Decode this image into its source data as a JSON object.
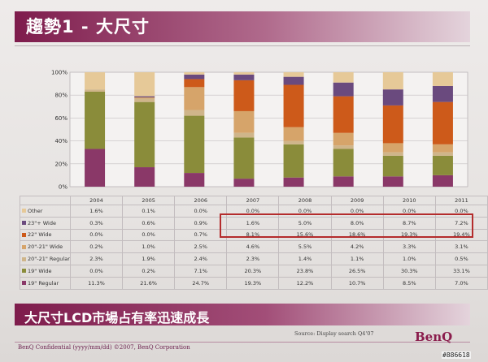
{
  "slide": {
    "title": "趨勢1 - 大尺寸",
    "banner": "大尺寸LCD市場占有率迅速成長",
    "source": "Source: Display search Q4'07",
    "confidential": "BenQ Confidential (yyyy/mm/dd) ©2007, BenQ Corporation",
    "logo": "BenQ",
    "watermark": "#886618"
  },
  "colors": {
    "Other": "#e6c998",
    "23\"+ Wide": "#6a4a7e",
    "22\" Wide": "#cd5a1a",
    "20\"-21\" Wide": "#d6a46a",
    "20\"-21\" Regular": "#cfb58a",
    "19\" Wide": "#8a8c3a",
    "19\" Regular": "#8a3868"
  },
  "chart_data": {
    "type": "bar",
    "stacked": true,
    "percent_axis": true,
    "ylim": [
      0,
      100
    ],
    "yticks": [
      "0%",
      "20%",
      "40%",
      "60%",
      "80%",
      "100%"
    ],
    "categories": [
      "2004",
      "2005",
      "2006",
      "2007",
      "2008",
      "2009",
      "2010",
      "2011"
    ],
    "series": [
      {
        "name": "Other",
        "values": [
          "1.6%",
          "0.1%",
          "0.0%",
          "0.0%",
          "0.0%",
          "0.0%",
          "0.0%",
          "0.0%"
        ]
      },
      {
        "name": "23\"+ Wide",
        "values": [
          "0.3%",
          "0.6%",
          "0.9%",
          "1.6%",
          "5.0%",
          "8.0%",
          "8.7%",
          "7.2%"
        ]
      },
      {
        "name": "22\" Wide",
        "values": [
          "0.0%",
          "0.0%",
          "0.7%",
          "8.1%",
          "15.6%",
          "18.6%",
          "19.3%",
          "19.4%"
        ]
      },
      {
        "name": "20\"-21\" Wide",
        "values": [
          "0.2%",
          "1.0%",
          "2.5%",
          "4.6%",
          "5.5%",
          "4.2%",
          "3.3%",
          "3.1%"
        ]
      },
      {
        "name": "20\"-21\" Regular",
        "values": [
          "2.3%",
          "1.9%",
          "2.4%",
          "2.3%",
          "1.4%",
          "1.1%",
          "1.0%",
          "0.5%"
        ]
      },
      {
        "name": "19\" Wide",
        "values": [
          "0.0%",
          "0.2%",
          "7.1%",
          "20.3%",
          "23.8%",
          "26.5%",
          "30.3%",
          "33.1%"
        ]
      },
      {
        "name": "19\" Regular",
        "values": [
          "11.3%",
          "21.6%",
          "24.7%",
          "19.3%",
          "12.2%",
          "10.7%",
          "8.5%",
          "7.0%"
        ]
      }
    ],
    "bar_segments": {
      "stack_order": [
        "19\" Regular",
        "19\" Wide",
        "20\"-21\" Regular",
        "20\"-21\" Wide",
        "22\" Wide",
        "23\"+ Wide",
        "Other"
      ],
      "fractions": [
        [
          33,
          50,
          2,
          0,
          0,
          0,
          15
        ],
        [
          17,
          57,
          3,
          1,
          0,
          1,
          21
        ],
        [
          12,
          50,
          5,
          20,
          7,
          4,
          2
        ],
        [
          7,
          36,
          4,
          19,
          27,
          5,
          2
        ],
        [
          8,
          29,
          3,
          12,
          37,
          7,
          4
        ],
        [
          9,
          24,
          3,
          11,
          32,
          12,
          9
        ],
        [
          9,
          18,
          3,
          8,
          33,
          14,
          15
        ],
        [
          10,
          17,
          3,
          7,
          37,
          14,
          12
        ]
      ]
    }
  }
}
